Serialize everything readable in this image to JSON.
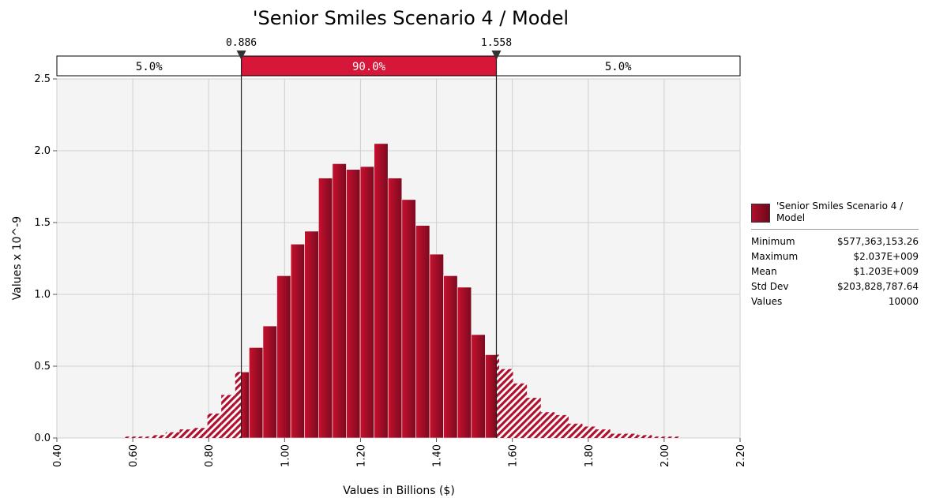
{
  "chart_data": {
    "type": "bar",
    "title": "'Senior Smiles Scenario 4 / Model",
    "xlabel": "Values in Billions ($)",
    "ylabel": "Values x 10^-9",
    "xlim": [
      0.4,
      2.2
    ],
    "ylim": [
      0.0,
      2.5
    ],
    "xticks": [
      "0.40",
      "0.60",
      "0.80",
      "1.00",
      "1.20",
      "1.40",
      "1.60",
      "1.80",
      "2.00",
      "2.20"
    ],
    "yticks": [
      "0.0",
      "0.5",
      "1.0",
      "1.5",
      "2.0",
      "2.5"
    ],
    "grid": true,
    "bin_width": 0.0366,
    "bins_start": 0.577,
    "values": [
      0.01,
      0.01,
      0.02,
      0.04,
      0.06,
      0.07,
      0.17,
      0.3,
      0.46,
      0.63,
      0.78,
      1.13,
      1.35,
      1.44,
      1.81,
      1.91,
      1.87,
      1.89,
      2.05,
      1.81,
      1.66,
      1.48,
      1.28,
      1.13,
      1.05,
      0.72,
      0.58,
      0.48,
      0.38,
      0.28,
      0.18,
      0.16,
      0.1,
      0.08,
      0.06,
      0.03,
      0.03,
      0.02,
      0.01,
      0.01
    ],
    "markers": [
      {
        "value": 0.886,
        "label": "0.886"
      },
      {
        "value": 1.558,
        "label": "1.558"
      }
    ],
    "bands": [
      {
        "label": "5.0%",
        "from": 0.4,
        "to": 0.886
      },
      {
        "label": "90.0%",
        "from": 0.886,
        "to": 1.558
      },
      {
        "label": "5.0%",
        "from": 1.558,
        "to": 2.2
      }
    ],
    "colors": {
      "bar_dark": "#7a0a1f",
      "bar_light": "#c8102e",
      "band_middle": "#d6173a",
      "plot_bg": "#f4f4f4"
    },
    "legend": {
      "name": "'Senior Smiles Scenario 4 / Model",
      "placement": "right",
      "stats": [
        {
          "label": "Minimum",
          "value": "$577,363,153.26"
        },
        {
          "label": "Maximum",
          "value": "$2.037E+009"
        },
        {
          "label": "Mean",
          "value": "$1.203E+009"
        },
        {
          "label": "Std Dev",
          "value": "$203,828,787.64"
        },
        {
          "label": "Values",
          "value": "10000"
        }
      ]
    }
  }
}
